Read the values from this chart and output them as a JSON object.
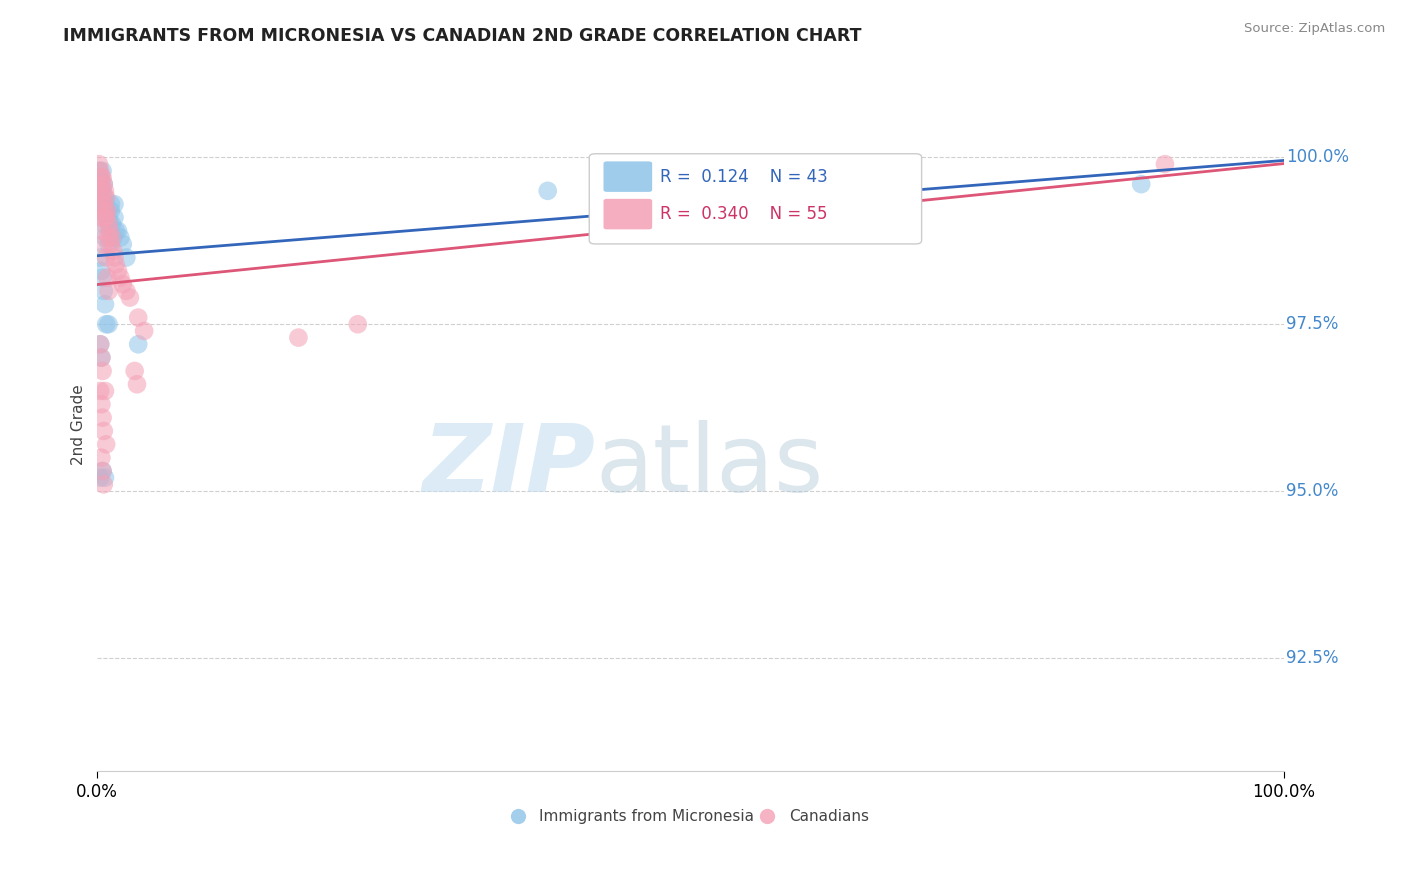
{
  "title": "IMMIGRANTS FROM MICRONESIA VS CANADIAN 2ND GRADE CORRELATION CHART",
  "source": "Source: ZipAtlas.com",
  "ylabel": "2nd Grade",
  "ytick_labels": [
    "92.5%",
    "95.0%",
    "97.5%",
    "100.0%"
  ],
  "ytick_values": [
    92.5,
    95.0,
    97.5,
    100.0
  ],
  "xmin": 0.0,
  "xmax": 100.0,
  "ymin": 90.8,
  "ymax": 101.2,
  "legend_blue_r": "0.124",
  "legend_blue_n": "43",
  "legend_pink_r": "0.340",
  "legend_pink_n": "55",
  "blue_color": "#8ec4e8",
  "pink_color": "#f4a0b5",
  "blue_line_color": "#3366bb",
  "pink_line_color": "#dd5577",
  "watermark_zip": "ZIP",
  "watermark_atlas": "atlas",
  "blue_x": [
    0.2,
    0.3,
    0.3,
    0.4,
    0.4,
    0.5,
    0.5,
    0.5,
    0.6,
    0.6,
    0.7,
    0.7,
    0.8,
    0.9,
    1.0,
    1.0,
    1.1,
    1.2,
    1.3,
    1.4,
    1.5,
    1.6,
    1.8,
    2.0,
    2.2,
    2.5,
    0.3,
    0.4,
    0.5,
    0.6,
    0.7,
    0.8,
    1.0,
    1.2,
    1.5,
    0.3,
    0.4,
    0.5,
    0.3,
    3.5,
    0.7,
    38.0,
    88.0
  ],
  "blue_y": [
    99.8,
    99.7,
    99.5,
    99.6,
    99.3,
    99.8,
    99.5,
    99.2,
    99.6,
    99.0,
    99.4,
    98.8,
    99.3,
    99.2,
    99.1,
    98.7,
    99.0,
    99.2,
    99.0,
    98.8,
    99.3,
    98.9,
    98.9,
    98.8,
    98.7,
    98.5,
    98.5,
    98.3,
    98.2,
    98.0,
    97.8,
    97.5,
    97.5,
    99.3,
    99.1,
    97.2,
    97.0,
    95.3,
    95.2,
    97.2,
    95.2,
    99.5,
    99.6
  ],
  "pink_x": [
    0.2,
    0.3,
    0.3,
    0.4,
    0.4,
    0.5,
    0.5,
    0.6,
    0.6,
    0.7,
    0.7,
    0.8,
    0.8,
    0.9,
    1.0,
    1.0,
    1.1,
    1.2,
    1.3,
    1.4,
    1.5,
    1.6,
    1.8,
    2.0,
    2.2,
    2.5,
    2.8,
    0.3,
    0.4,
    0.5,
    0.6,
    0.7,
    0.8,
    0.9,
    1.0,
    3.5,
    4.0,
    0.3,
    0.4,
    0.5,
    0.3,
    0.4,
    17.0,
    22.0,
    0.5,
    0.6,
    0.7,
    0.8,
    0.4,
    0.5,
    65.0,
    90.0,
    3.2,
    3.4,
    0.6
  ],
  "pink_y": [
    99.9,
    99.8,
    99.6,
    99.7,
    99.5,
    99.7,
    99.4,
    99.6,
    99.3,
    99.5,
    99.2,
    99.4,
    99.1,
    99.2,
    99.0,
    98.8,
    98.9,
    98.7,
    98.8,
    98.6,
    98.5,
    98.4,
    98.3,
    98.2,
    98.1,
    98.0,
    97.9,
    99.3,
    99.1,
    98.9,
    98.7,
    99.1,
    98.5,
    98.2,
    98.0,
    97.6,
    97.4,
    97.2,
    97.0,
    96.8,
    96.5,
    96.3,
    97.3,
    97.5,
    96.1,
    95.9,
    96.5,
    95.7,
    95.5,
    95.3,
    99.8,
    99.9,
    96.8,
    96.6,
    95.1
  ]
}
